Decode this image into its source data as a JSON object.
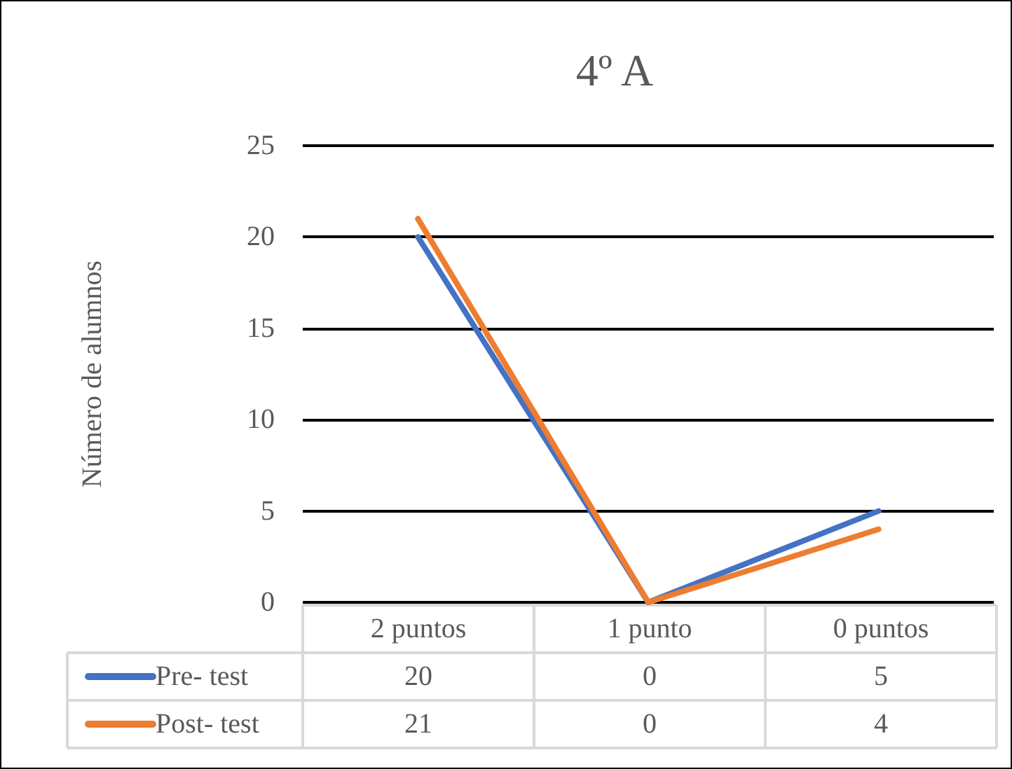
{
  "chart_data": {
    "type": "line",
    "title": "4º A",
    "ylabel": "Número de alumnos",
    "categories": [
      "2 puntos",
      "1 punto",
      "0 puntos"
    ],
    "series": [
      {
        "name": "Pre- test",
        "color": "#4472c4",
        "values": [
          20,
          0,
          5
        ]
      },
      {
        "name": "Post- test",
        "color": "#ed7d31",
        "values": [
          21,
          0,
          4
        ]
      }
    ],
    "ylim": [
      0,
      25
    ],
    "yticks": [
      0,
      5,
      10,
      15,
      20,
      25
    ],
    "grid": "y",
    "legend": "bottom",
    "data_labels": true,
    "marker": "none",
    "line_style": "solid"
  }
}
